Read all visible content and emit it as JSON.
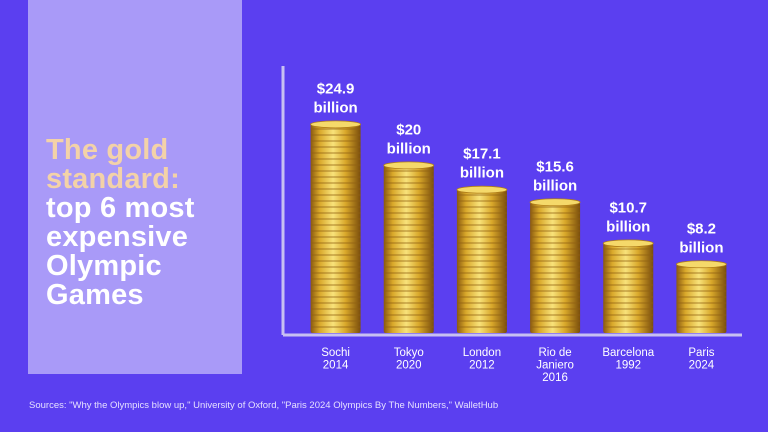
{
  "title": {
    "highlight": "The gold standard:",
    "rest": "top 6 most expensive Olympic Games"
  },
  "source": "Sources: \"Why the Olympics blow up,\" University of Oxford, \"Paris 2024 Olympics By The Numbers,\" WalletHub",
  "colors": {
    "background": "#5b3ff0",
    "panel": "#a99af8",
    "highlight": "#f3d2a8",
    "coin": "#d9a82a"
  },
  "chart_data": {
    "type": "bar",
    "categories": [
      "Sochi 2014",
      "Tokyo 2020",
      "London 2012",
      "Rio de Janiero 2016",
      "Barcelona 1992",
      "Paris 2024"
    ],
    "category_lines": [
      [
        "Sochi",
        "2014"
      ],
      [
        "Tokyo",
        "2020"
      ],
      [
        "London",
        "2012"
      ],
      [
        "Rio de",
        "Janiero",
        "2016"
      ],
      [
        "Barcelona",
        "1992"
      ],
      [
        "Paris",
        "2024"
      ]
    ],
    "values": [
      24.9,
      20,
      17.1,
      15.6,
      10.7,
      8.2
    ],
    "data_labels": [
      [
        "$24.9",
        "billion"
      ],
      [
        "$20",
        "billion"
      ],
      [
        "$17.1",
        "billion"
      ],
      [
        "$15.6",
        "billion"
      ],
      [
        "$10.7",
        "billion"
      ],
      [
        "$8.2",
        "billion"
      ]
    ],
    "unit": "billion USD",
    "title": "",
    "xlabel": "",
    "ylabel": "",
    "ylim": [
      0,
      27
    ],
    "grid": false,
    "bar_style": "stacked gold coins"
  }
}
